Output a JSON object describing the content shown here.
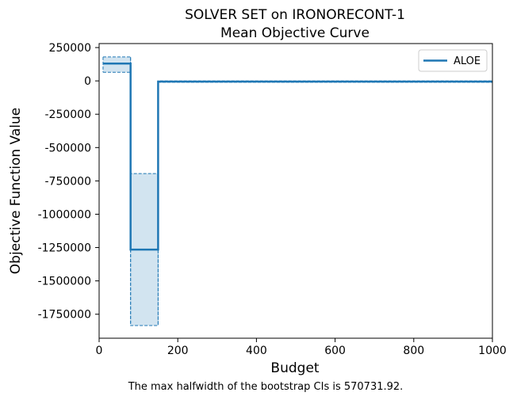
{
  "chart_data": {
    "type": "line",
    "title": "SOLVER SET on IRONORECONT-1",
    "subtitle": "Mean Objective Curve",
    "xlabel": "Budget",
    "ylabel": "Objective Function Value",
    "xlim": [
      0,
      1000
    ],
    "ylim": [
      -1930000,
      280000
    ],
    "xticks": [
      0,
      200,
      400,
      600,
      800,
      1000
    ],
    "yticks": [
      250000,
      0,
      -250000,
      -500000,
      -750000,
      -1000000,
      -1250000,
      -1500000,
      -1750000
    ],
    "grid": false,
    "legend_position": "top-right",
    "caption": "The max halfwidth of the bootstrap CIs is 570731.92.",
    "series": [
      {
        "name": "ALOE",
        "color": "#1f77b4",
        "step": true,
        "x": [
          10,
          80,
          80,
          150,
          150,
          1000
        ],
        "y": [
          130000,
          130000,
          -1265000,
          -1265000,
          -5000,
          -5000
        ],
        "ci_lower": [
          65000,
          65000,
          -1835000,
          -1835000,
          -10000,
          -10000
        ],
        "ci_upper": [
          180000,
          180000,
          -695000,
          -695000,
          0,
          0
        ]
      }
    ]
  }
}
